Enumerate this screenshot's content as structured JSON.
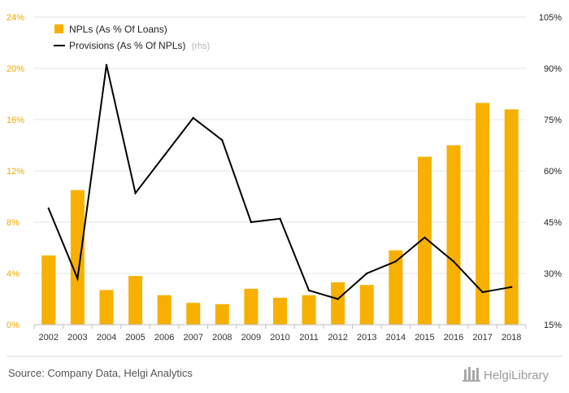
{
  "chart_data": {
    "type": "bar",
    "categories": [
      "2002",
      "2003",
      "2004",
      "2005",
      "2006",
      "2007",
      "2008",
      "2009",
      "2010",
      "2011",
      "2012",
      "2013",
      "2014",
      "2015",
      "2016",
      "2017",
      "2018"
    ],
    "series": [
      {
        "name": "NPLs (As % Of Loans)",
        "type": "bar",
        "axis": "left",
        "color": "#f7b000",
        "values": [
          5.4,
          10.5,
          2.7,
          3.8,
          2.3,
          1.7,
          1.6,
          2.8,
          2.1,
          2.3,
          3.3,
          3.1,
          5.8,
          13.1,
          14.0,
          17.3,
          16.8
        ]
      },
      {
        "name": "Provisions (As % Of NPLs)",
        "name_suffix": "(rhs)",
        "type": "line",
        "axis": "right",
        "color": "#000000",
        "values": [
          49.0,
          28.5,
          91.0,
          53.5,
          64.5,
          75.5,
          69.0,
          45.0,
          46.0,
          25.0,
          22.5,
          30.0,
          33.5,
          40.5,
          33.5,
          24.5,
          26.0
        ]
      }
    ],
    "ylim_left": [
      0,
      24
    ],
    "yticks_left": [
      "0%",
      "4%",
      "8%",
      "12%",
      "16%",
      "20%",
      "24%"
    ],
    "ylim_right": [
      15,
      105
    ],
    "yticks_right": [
      "15%",
      "30%",
      "45%",
      "60%",
      "75%",
      "90%",
      "105%"
    ],
    "grid": true,
    "legend": "top-left",
    "colors": {
      "left_axis": "#f5a800",
      "bar": "#f7b000",
      "line": "#000000",
      "grid": "#e6e6e6"
    }
  },
  "footer": {
    "source": "Source: Company Data, Helgi Analytics",
    "brand": "HelgiLibrary"
  }
}
